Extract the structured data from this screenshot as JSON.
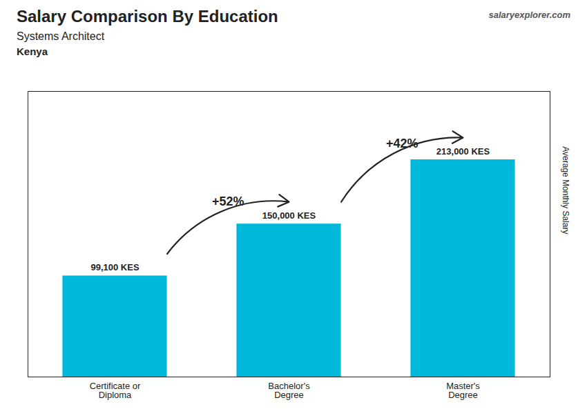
{
  "chart_data": {
    "type": "bar",
    "title": "Salary Comparison By Education",
    "subtitle": "Systems Architect",
    "categories": [
      "Certificate or\nDiploma",
      "Bachelor's\nDegree",
      "Master's\nDegree"
    ],
    "values": [
      99100,
      150000,
      213000
    ],
    "value_labels": [
      "99,100 KES",
      "150,000 KES",
      "213,000 KES"
    ],
    "data_labels": true,
    "color": "#00b8d9",
    "ylabel": "Average Monthly Salary",
    "ylim": [
      0,
      280000
    ],
    "tick_labels": "x",
    "grid": false,
    "annotations": [
      {
        "text": "+52%",
        "from": "Certificate or\nDiploma",
        "to": "Bachelor's\nDegree"
      },
      {
        "text": "+42%",
        "from": "Bachelor's\nDegree",
        "to": "Master's\nDegree"
      },
      {
        "text": "Kenya"
      },
      {
        "text": "salaryexplorer.com"
      }
    ]
  }
}
